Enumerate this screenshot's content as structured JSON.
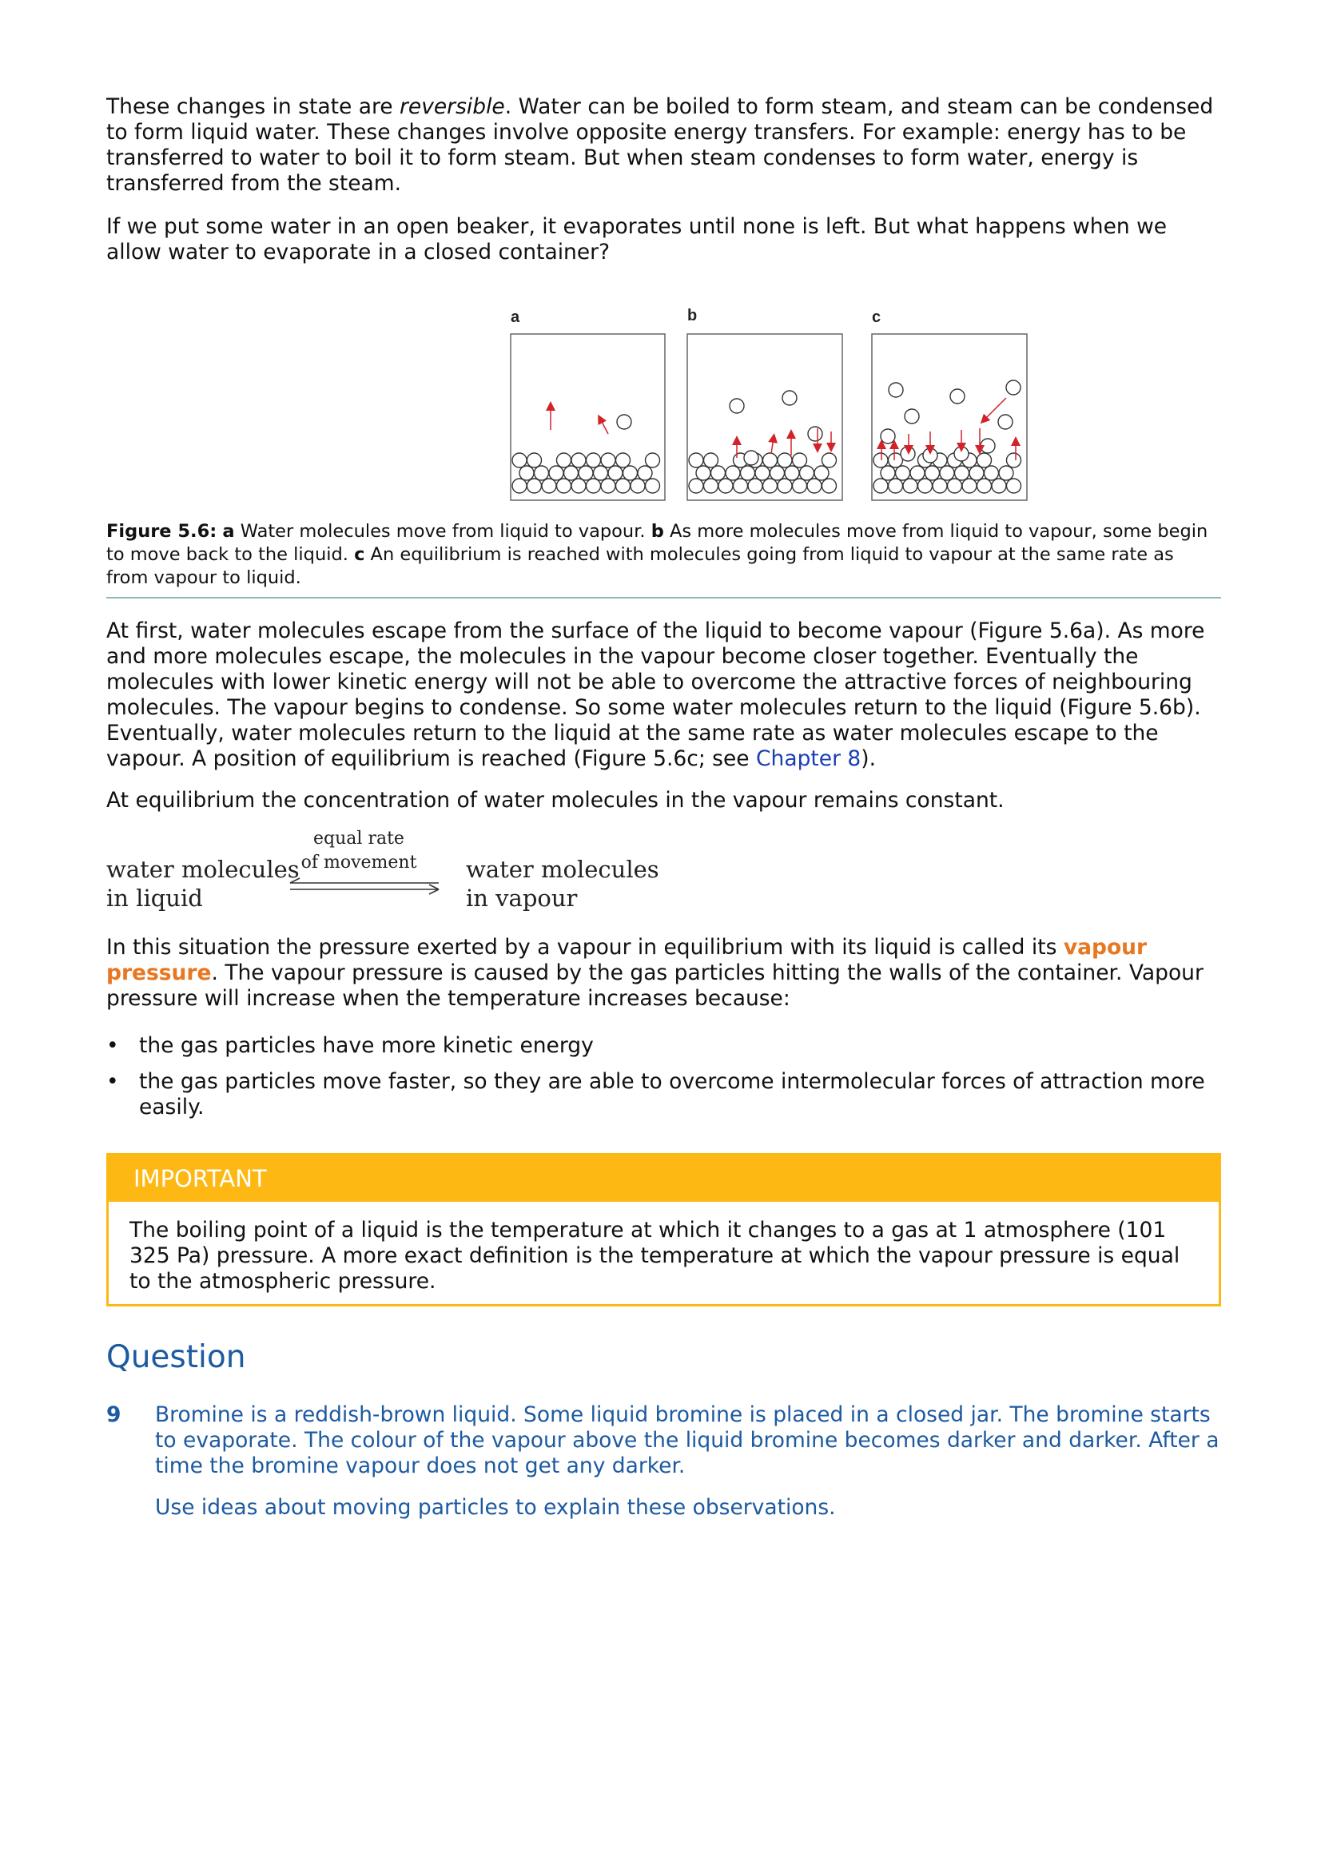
{
  "paragraphs": {
    "p1_before": "These changes in state are ",
    "p1_em": "reversible",
    "p1_after": ". Water can be boiled to form steam, and steam can be condensed to form liquid water. These changes involve opposite energy transfers. For example: energy has to be transferred to water to boil it to form steam. But when steam condenses to form water, energy is transferred from the steam.",
    "p2": "If we put some water in an open beaker, it evaporates until none is left. But what happens when we allow water to evaporate in a closed container?",
    "p3_before": "At first, water molecules escape from the surface of the liquid to become vapour (Figure 5.6a). As more and more molecules escape, the molecules in the vapour become closer together. Eventually the molecules with lower kinetic energy will not be able to overcome the attractive forces of neighbouring molecules. The vapour begins to condense. So some water molecules return to the liquid (Figure 5.6b). Eventually, water molecules return to the liquid at the same rate as water molecules escape to the vapour. A position of equilibrium is reached (Figure 5.6c; see ",
    "p3_link": "Chapter 8",
    "p3_after": ").",
    "p4": "At equilibrium the concentration of water molecules in the vapour remains constant.",
    "p5_before": "In this situation the pressure exerted by a vapour in equilibrium with its liquid is called its ",
    "p5_keyword": "vapour pressure",
    "p5_after": ". The vapour pressure is caused by the gas particles hitting the walls of the container. Vapour pressure will increase when the temperature increases because:"
  },
  "figure": {
    "panel_labels": [
      "a",
      "b",
      "c"
    ],
    "arrow_color": "#d2232a",
    "caption_label": "Figure 5.6:",
    "caption_a_letter": "a",
    "caption_a_text": " Water molecules move from liquid to vapour. ",
    "caption_b_letter": "b",
    "caption_b_text": " As more molecules move from liquid to vapour, some begin to move back to the liquid. ",
    "caption_c_letter": "c",
    "caption_c_text": " An equilibrium is reached with molecules going from liquid to vapour at the same rate as from vapour to liquid."
  },
  "equation": {
    "lhs_line1": "water molecules",
    "lhs_line2": "in liquid",
    "rate_line1": "equal rate",
    "rate_line2": "of movement",
    "rhs_line1": "water molecules",
    "rhs_line2": "in vapour"
  },
  "bullets": [
    "the gas particles have more kinetic energy",
    "the gas particles move faster, so they are able to overcome intermolecular forces of attraction more easily."
  ],
  "bullet_symbol": "•",
  "important": {
    "heading": "IMPORTANT",
    "text": "The boiling point of a liquid is the temperature at which it changes to a gas at 1 atmosphere (101 325 Pa) pressure. A more exact definition is the temperature at which the vapour pressure is equal to the atmospheric pressure.",
    "color": "#fdb813"
  },
  "question": {
    "heading": "Question",
    "number": "9",
    "text": "Bromine is a reddish-brown liquid. Some liquid bromine is placed in a closed jar. The bromine starts to evaporate. The colour of the vapour above the liquid bromine becomes darker and darker. After a time the bromine vapour does not get any darker.",
    "text2": "Use ideas about moving particles to explain these observations.",
    "color": "#1d5aa0"
  }
}
